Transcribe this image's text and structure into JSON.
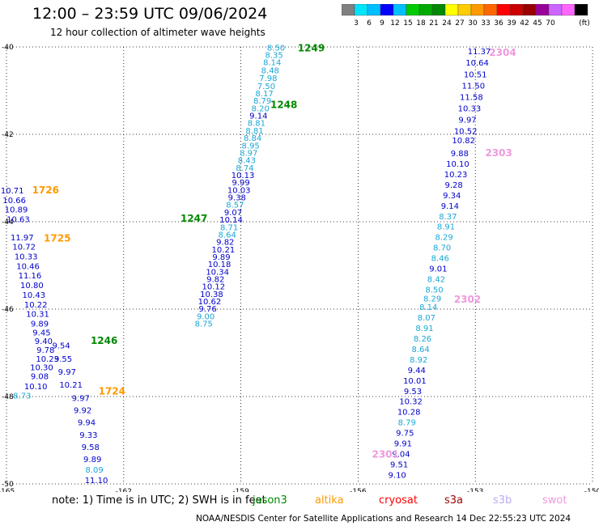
{
  "header": {
    "title": "12:00 – 23:59 UTC 09/06/2024",
    "subtitle": "12 hour collection of altimeter wave heights"
  },
  "colorbar": {
    "unit": "(ft)",
    "swatches": [
      "#808080",
      "#00e5ff",
      "#00bfff",
      "#0000ff",
      "#00bfff",
      "#00cc00",
      "#00aa00",
      "#008800",
      "#ffff00",
      "#ffcc00",
      "#ff9900",
      "#ff6600",
      "#ff0000",
      "#cc0000",
      "#990000",
      "#990099",
      "#cc66ff",
      "#ff66ff",
      "#000000"
    ],
    "tick_labels": [
      "3",
      "6",
      "9",
      "12",
      "15",
      "18",
      "21",
      "24",
      "27",
      "30",
      "33",
      "36",
      "39",
      "42",
      "45",
      "70"
    ]
  },
  "map": {
    "lon_range": [
      -165,
      -150
    ],
    "lat_range": [
      -50,
      -40
    ],
    "lon_ticks": [
      "-165",
      "-162",
      "-159",
      "-156",
      "-153",
      "-150"
    ],
    "lat_ticks": [
      "-40",
      "-42",
      "-44",
      "-46",
      "-48",
      "-50"
    ],
    "colors": {
      "dark_blue": "#0000cc",
      "light_blue": "#1aa7d6",
      "green": "#008800",
      "orange": "#ff9900",
      "pink": "#ee99dd"
    }
  },
  "passes": [
    {
      "label": "1249",
      "color": "#008800",
      "lon": -157.2,
      "lat": -40.1
    },
    {
      "label": "1248",
      "color": "#008800",
      "lon": -157.9,
      "lat": -41.4
    },
    {
      "label": "1247",
      "color": "#008800",
      "lon": -160.2,
      "lat": -44.0
    },
    {
      "label": "1246",
      "color": "#008800",
      "lon": -162.5,
      "lat": -46.8
    },
    {
      "label": "1726",
      "color": "#ff9900",
      "lon": -164.0,
      "lat": -43.35
    },
    {
      "label": "1725",
      "color": "#ff9900",
      "lon": -163.7,
      "lat": -44.45
    },
    {
      "label": "1724",
      "color": "#ff9900",
      "lon": -162.3,
      "lat": -47.95
    },
    {
      "label": "2304",
      "color": "#ee99dd",
      "lon": -152.3,
      "lat": -40.2
    },
    {
      "label": "2303",
      "color": "#ee99dd",
      "lon": -152.4,
      "lat": -42.5
    },
    {
      "label": "2302",
      "color": "#ee99dd",
      "lon": -153.2,
      "lat": -45.85
    },
    {
      "label": "2301",
      "color": "#ee99dd",
      "lon": -155.3,
      "lat": -49.4
    }
  ],
  "tracks": [
    {
      "name": "track-1249-1246",
      "points": [
        {
          "v": "8.50",
          "c": "#1aa7d6",
          "lon": -158.1,
          "lat": -40.08
        },
        {
          "v": "8.35",
          "c": "#1aa7d6",
          "lon": -158.15,
          "lat": -40.25
        },
        {
          "v": "8.14",
          "c": "#1aa7d6",
          "lon": -158.2,
          "lat": -40.42
        },
        {
          "v": "8.48",
          "c": "#1aa7d6",
          "lon": -158.25,
          "lat": -40.6
        },
        {
          "v": "7.98",
          "c": "#1aa7d6",
          "lon": -158.3,
          "lat": -40.78
        },
        {
          "v": "7.50",
          "c": "#1aa7d6",
          "lon": -158.35,
          "lat": -40.96
        },
        {
          "v": "8.17",
          "c": "#1aa7d6",
          "lon": -158.4,
          "lat": -41.13
        },
        {
          "v": "8.79",
          "c": "#1aa7d6",
          "lon": -158.45,
          "lat": -41.3
        },
        {
          "v": "8.20",
          "c": "#1aa7d6",
          "lon": -158.5,
          "lat": -41.47
        },
        {
          "v": "9.14",
          "c": "#0000cc",
          "lon": -158.55,
          "lat": -41.64
        },
        {
          "v": "8.81",
          "c": "#1aa7d6",
          "lon": -158.6,
          "lat": -41.81
        },
        {
          "v": "8.81",
          "c": "#1aa7d6",
          "lon": -158.65,
          "lat": -41.98
        },
        {
          "v": "8.84",
          "c": "#1aa7d6",
          "lon": -158.7,
          "lat": -42.15
        },
        {
          "v": "8.95",
          "c": "#1aa7d6",
          "lon": -158.75,
          "lat": -42.32
        },
        {
          "v": "8.97",
          "c": "#1aa7d6",
          "lon": -158.8,
          "lat": -42.49
        },
        {
          "v": "8.43",
          "c": "#1aa7d6",
          "lon": -158.85,
          "lat": -42.66
        },
        {
          "v": "8.74",
          "c": "#1aa7d6",
          "lon": -158.9,
          "lat": -42.83
        },
        {
          "v": "10.13",
          "c": "#0000cc",
          "lon": -158.95,
          "lat": -43.0
        },
        {
          "v": "9.99",
          "c": "#0000cc",
          "lon": -159.0,
          "lat": -43.17
        },
        {
          "v": "10.03",
          "c": "#0000cc",
          "lon": -159.05,
          "lat": -43.34
        },
        {
          "v": "9.38",
          "c": "#0000cc",
          "lon": -159.1,
          "lat": -43.51
        },
        {
          "v": "8.57",
          "c": "#1aa7d6",
          "lon": -159.15,
          "lat": -43.68
        },
        {
          "v": "9.07",
          "c": "#0000cc",
          "lon": -159.2,
          "lat": -43.85
        },
        {
          "v": "10.14",
          "c": "#0000cc",
          "lon": -159.25,
          "lat": -44.02
        },
        {
          "v": "8.71",
          "c": "#1aa7d6",
          "lon": -159.3,
          "lat": -44.19
        },
        {
          "v": "8.64",
          "c": "#1aa7d6",
          "lon": -159.35,
          "lat": -44.36
        },
        {
          "v": "9.82",
          "c": "#0000cc",
          "lon": -159.4,
          "lat": -44.53
        },
        {
          "v": "10.21",
          "c": "#0000cc",
          "lon": -159.45,
          "lat": -44.7
        },
        {
          "v": "9.89",
          "c": "#0000cc",
          "lon": -159.5,
          "lat": -44.87
        },
        {
          "v": "10.18",
          "c": "#0000cc",
          "lon": -159.55,
          "lat": -45.04
        },
        {
          "v": "10.34",
          "c": "#0000cc",
          "lon": -159.6,
          "lat": -45.21
        },
        {
          "v": "9.82",
          "c": "#0000cc",
          "lon": -159.65,
          "lat": -45.38
        },
        {
          "v": "10.12",
          "c": "#0000cc",
          "lon": -159.7,
          "lat": -45.55
        },
        {
          "v": "10.38",
          "c": "#0000cc",
          "lon": -159.75,
          "lat": -45.72
        },
        {
          "v": "10.62",
          "c": "#0000cc",
          "lon": -159.8,
          "lat": -45.89
        },
        {
          "v": "9.76",
          "c": "#0000cc",
          "lon": -159.85,
          "lat": -46.06
        },
        {
          "v": "9.00",
          "c": "#1aa7d6",
          "lon": -159.9,
          "lat": -46.23
        },
        {
          "v": "8.75",
          "c": "#1aa7d6",
          "lon": -159.95,
          "lat": -46.4
        }
      ]
    },
    {
      "name": "track-1726-1724",
      "points": [
        {
          "v": "10.71",
          "c": "#0000cc",
          "lon": -164.85,
          "lat": -43.35
        },
        {
          "v": "10.66",
          "c": "#0000cc",
          "lon": -164.8,
          "lat": -43.57
        },
        {
          "v": "10.89",
          "c": "#0000cc",
          "lon": -164.75,
          "lat": -43.79
        },
        {
          "v": "10.63",
          "c": "#0000cc",
          "lon": -164.7,
          "lat": -44.01
        },
        {
          "v": "11.97",
          "c": "#0000cc",
          "lon": -164.6,
          "lat": -44.43
        },
        {
          "v": "10.72",
          "c": "#0000cc",
          "lon": -164.55,
          "lat": -44.64
        },
        {
          "v": "10.33",
          "c": "#0000cc",
          "lon": -164.5,
          "lat": -44.86
        },
        {
          "v": "10.46",
          "c": "#0000cc",
          "lon": -164.45,
          "lat": -45.08
        },
        {
          "v": "11.16",
          "c": "#0000cc",
          "lon": -164.4,
          "lat": -45.3
        },
        {
          "v": "10.80",
          "c": "#0000cc",
          "lon": -164.35,
          "lat": -45.52
        },
        {
          "v": "10.43",
          "c": "#0000cc",
          "lon": -164.3,
          "lat": -45.74
        },
        {
          "v": "10.22",
          "c": "#0000cc",
          "lon": -164.25,
          "lat": -45.96
        },
        {
          "v": "10.31",
          "c": "#0000cc",
          "lon": -164.2,
          "lat": -46.18
        },
        {
          "v": "9.89",
          "c": "#0000cc",
          "lon": -164.15,
          "lat": -46.4
        },
        {
          "v": "9.45",
          "c": "#0000cc",
          "lon": -164.1,
          "lat": -46.6
        },
        {
          "v": "9.40",
          "c": "#0000cc",
          "lon": -164.05,
          "lat": -46.8
        },
        {
          "v": "9.78",
          "c": "#0000cc",
          "lon": -164.0,
          "lat": -47.0
        },
        {
          "v": "9.54",
          "c": "#0000cc",
          "lon": -163.6,
          "lat": -46.9
        },
        {
          "v": "10.23",
          "c": "#0000cc",
          "lon": -163.95,
          "lat": -47.2
        },
        {
          "v": "9.55",
          "c": "#0000cc",
          "lon": -163.55,
          "lat": -47.2
        },
        {
          "v": "10.30",
          "c": "#0000cc",
          "lon": -164.1,
          "lat": -47.4
        },
        {
          "v": "9.97",
          "c": "#0000cc",
          "lon": -163.45,
          "lat": -47.5
        },
        {
          "v": "9.08",
          "c": "#0000cc",
          "lon": -164.15,
          "lat": -47.6
        },
        {
          "v": "10.21",
          "c": "#0000cc",
          "lon": -163.35,
          "lat": -47.8
        },
        {
          "v": "10.10",
          "c": "#0000cc",
          "lon": -164.25,
          "lat": -47.83
        },
        {
          "v": "8.73",
          "c": "#1aa7d6",
          "lon": -164.6,
          "lat": -48.05
        },
        {
          "v": "9.97",
          "c": "#0000cc",
          "lon": -163.1,
          "lat": -48.1
        },
        {
          "v": "9.92",
          "c": "#0000cc",
          "lon": -163.05,
          "lat": -48.38
        },
        {
          "v": "9.94",
          "c": "#0000cc",
          "lon": -162.95,
          "lat": -48.66
        },
        {
          "v": "9.33",
          "c": "#0000cc",
          "lon": -162.9,
          "lat": -48.94
        },
        {
          "v": "9.58",
          "c": "#0000cc",
          "lon": -162.85,
          "lat": -49.22
        },
        {
          "v": "9.89",
          "c": "#0000cc",
          "lon": -162.8,
          "lat": -49.5
        },
        {
          "v": "8.09",
          "c": "#1aa7d6",
          "lon": -162.75,
          "lat": -49.74
        },
        {
          "v": "11.10",
          "c": "#0000cc",
          "lon": -162.7,
          "lat": -49.98
        }
      ]
    },
    {
      "name": "track-2304-2301",
      "points": [
        {
          "v": "11.37",
          "c": "#0000cc",
          "lon": -152.9,
          "lat": -40.17
        },
        {
          "v": "10.64",
          "c": "#0000cc",
          "lon": -152.95,
          "lat": -40.43
        },
        {
          "v": "10.51",
          "c": "#0000cc",
          "lon": -153.0,
          "lat": -40.69
        },
        {
          "v": "11.50",
          "c": "#0000cc",
          "lon": -153.05,
          "lat": -40.95
        },
        {
          "v": "11.58",
          "c": "#0000cc",
          "lon": -153.1,
          "lat": -41.21
        },
        {
          "v": "10.33",
          "c": "#0000cc",
          "lon": -153.15,
          "lat": -41.47
        },
        {
          "v": "9.97",
          "c": "#0000cc",
          "lon": -153.2,
          "lat": -41.73
        },
        {
          "v": "10.52",
          "c": "#0000cc",
          "lon": -153.25,
          "lat": -41.99
        },
        {
          "v": "10.82",
          "c": "#0000cc",
          "lon": -153.3,
          "lat": -42.2
        },
        {
          "v": "9.88",
          "c": "#0000cc",
          "lon": -153.4,
          "lat": -42.5
        },
        {
          "v": "10.10",
          "c": "#0000cc",
          "lon": -153.45,
          "lat": -42.74
        },
        {
          "v": "10.23",
          "c": "#0000cc",
          "lon": -153.5,
          "lat": -42.98
        },
        {
          "v": "9.28",
          "c": "#0000cc",
          "lon": -153.55,
          "lat": -43.22
        },
        {
          "v": "9.34",
          "c": "#0000cc",
          "lon": -153.6,
          "lat": -43.46
        },
        {
          "v": "9.14",
          "c": "#0000cc",
          "lon": -153.65,
          "lat": -43.7
        },
        {
          "v": "8.37",
          "c": "#1aa7d6",
          "lon": -153.7,
          "lat": -43.94
        },
        {
          "v": "8.91",
          "c": "#1aa7d6",
          "lon": -153.75,
          "lat": -44.18
        },
        {
          "v": "8.29",
          "c": "#1aa7d6",
          "lon": -153.8,
          "lat": -44.42
        },
        {
          "v": "8.70",
          "c": "#1aa7d6",
          "lon": -153.85,
          "lat": -44.66
        },
        {
          "v": "8.46",
          "c": "#1aa7d6",
          "lon": -153.9,
          "lat": -44.9
        },
        {
          "v": "9.01",
          "c": "#0000cc",
          "lon": -153.95,
          "lat": -45.14
        },
        {
          "v": "8.42",
          "c": "#1aa7d6",
          "lon": -154.0,
          "lat": -45.38
        },
        {
          "v": "8.50",
          "c": "#1aa7d6",
          "lon": -154.05,
          "lat": -45.62
        },
        {
          "v": "8.29",
          "c": "#1aa7d6",
          "lon": -154.1,
          "lat": -45.82
        },
        {
          "v": "8.14",
          "c": "#1aa7d6",
          "lon": -154.2,
          "lat": -46.02
        },
        {
          "v": "8.07",
          "c": "#1aa7d6",
          "lon": -154.25,
          "lat": -46.26
        },
        {
          "v": "8.91",
          "c": "#1aa7d6",
          "lon": -154.3,
          "lat": -46.5
        },
        {
          "v": "8.26",
          "c": "#1aa7d6",
          "lon": -154.35,
          "lat": -46.74
        },
        {
          "v": "8.64",
          "c": "#1aa7d6",
          "lon": -154.4,
          "lat": -46.98
        },
        {
          "v": "8.92",
          "c": "#1aa7d6",
          "lon": -154.45,
          "lat": -47.22
        },
        {
          "v": "9.44",
          "c": "#0000cc",
          "lon": -154.5,
          "lat": -47.46
        },
        {
          "v": "10.01",
          "c": "#0000cc",
          "lon": -154.55,
          "lat": -47.7
        },
        {
          "v": "9.53",
          "c": "#0000cc",
          "lon": -154.6,
          "lat": -47.94
        },
        {
          "v": "10.32",
          "c": "#0000cc",
          "lon": -154.65,
          "lat": -48.18
        },
        {
          "v": "10.28",
          "c": "#0000cc",
          "lon": -154.7,
          "lat": -48.42
        },
        {
          "v": "8.79",
          "c": "#1aa7d6",
          "lon": -154.75,
          "lat": -48.66
        },
        {
          "v": "9.75",
          "c": "#0000cc",
          "lon": -154.8,
          "lat": -48.9
        },
        {
          "v": "9.91",
          "c": "#0000cc",
          "lon": -154.85,
          "lat": -49.14
        },
        {
          "v": "9.04",
          "c": "#0000cc",
          "lon": -154.9,
          "lat": -49.38
        },
        {
          "v": "9.51",
          "c": "#0000cc",
          "lon": -154.95,
          "lat": -49.62
        },
        {
          "v": "9.10",
          "c": "#0000cc",
          "lon": -155.0,
          "lat": -49.86
        }
      ]
    }
  ],
  "footer": {
    "note": "note:  1) Time is in UTC; 2) SWH is in feet",
    "missions": [
      {
        "label": "jason3",
        "color": "#008800"
      },
      {
        "label": "altika",
        "color": "#ff9900"
      },
      {
        "label": "cryosat",
        "color": "#ff0000"
      },
      {
        "label": "s3a",
        "color": "#990000"
      },
      {
        "label": "s3b",
        "color": "#bbaaee"
      },
      {
        "label": "swot",
        "color": "#ee99dd"
      }
    ],
    "credit": "NOAA/NESDIS Center for Satellite Applications and Research    14 Dec 22:55:23 UTC 2024"
  }
}
